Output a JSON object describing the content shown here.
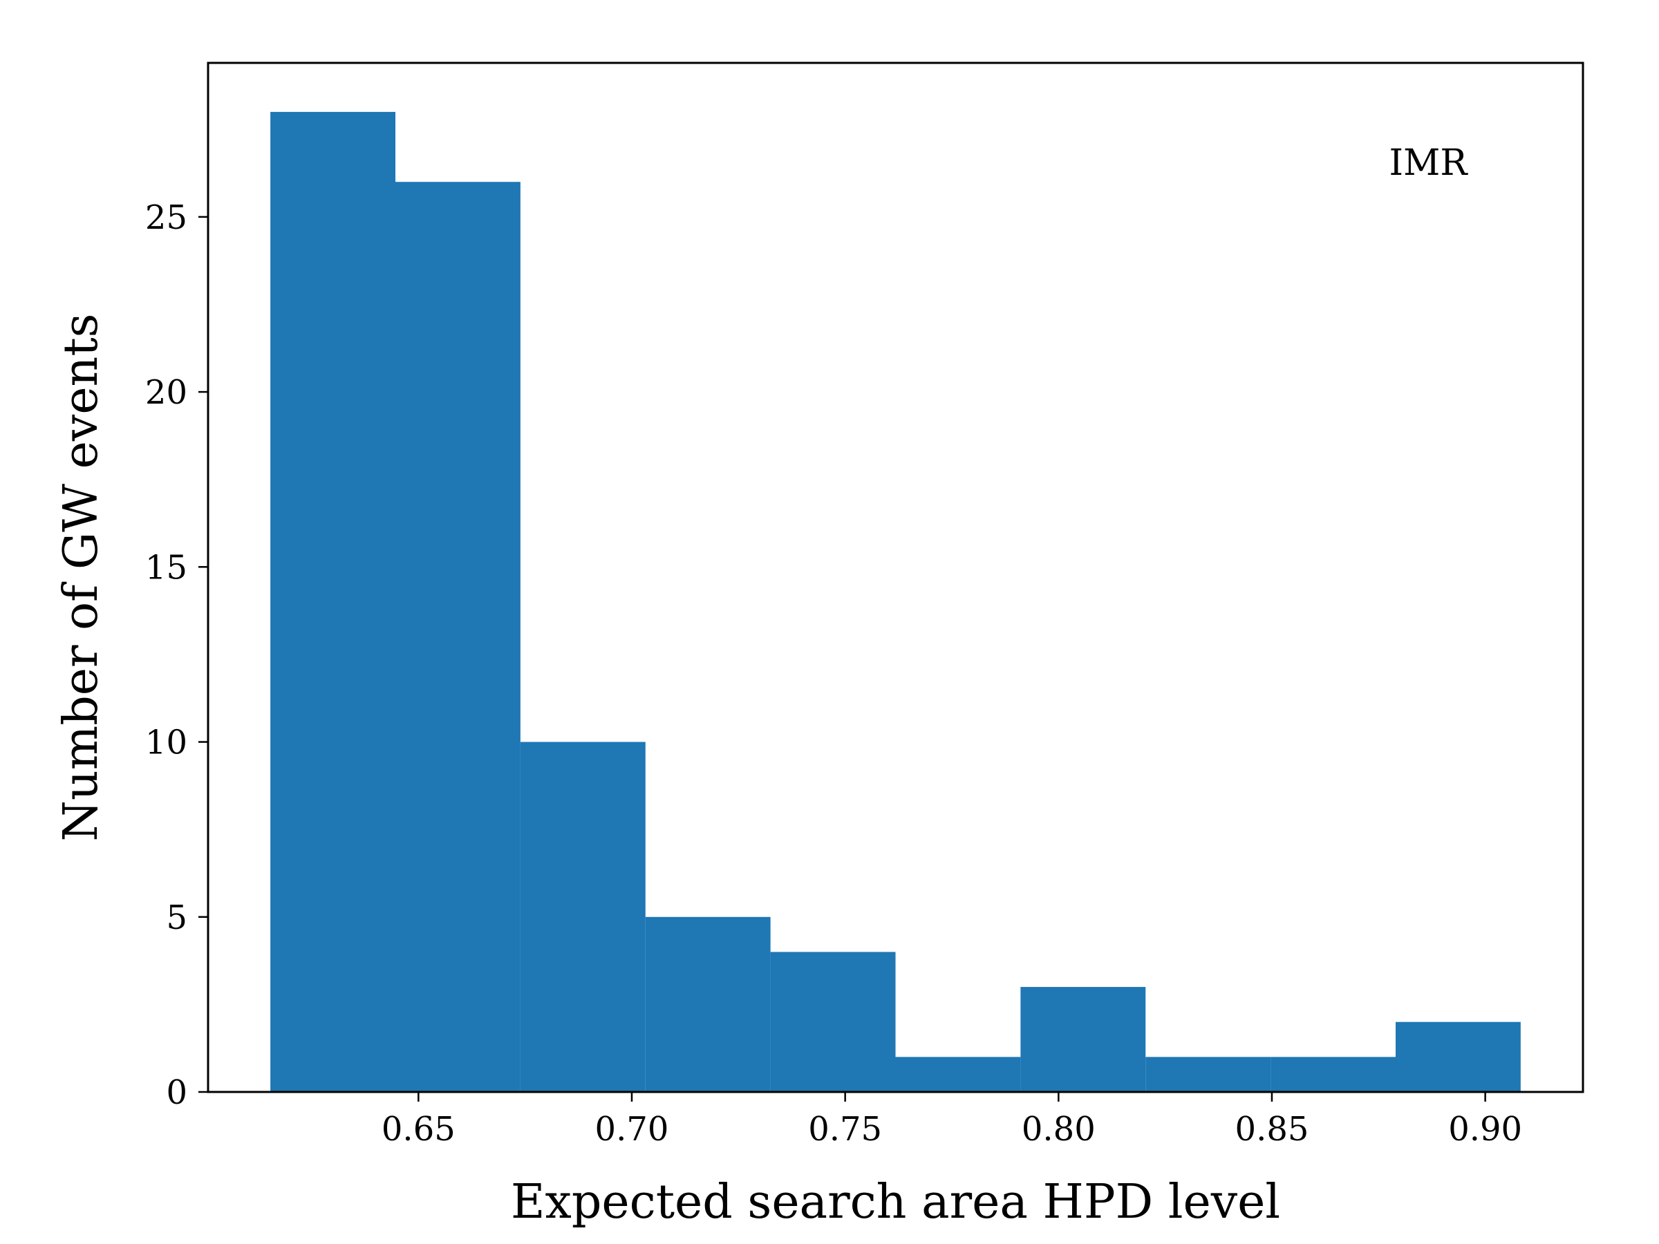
{
  "chart_data": {
    "type": "bar",
    "bin_edges": [
      0.6153,
      0.6446,
      0.6739,
      0.7032,
      0.7325,
      0.7618,
      0.7911,
      0.8204,
      0.8497,
      0.879,
      0.9083
    ],
    "values": [
      28,
      26,
      10,
      5,
      4,
      1,
      3,
      1,
      1,
      2
    ],
    "xlabel": "Expected search area HPD level",
    "ylabel": "Number of GW events",
    "annotation": "IMR",
    "xlim": [
      0.6007,
      0.9229
    ],
    "ylim": [
      0,
      29.4
    ],
    "xticks": [
      0.65,
      0.7,
      0.75,
      0.8,
      0.85,
      0.9
    ],
    "xtick_labels": [
      "0.65",
      "0.70",
      "0.75",
      "0.80",
      "0.85",
      "0.90"
    ],
    "yticks": [
      0,
      5,
      10,
      15,
      20,
      25
    ],
    "ytick_labels": [
      "0",
      "5",
      "10",
      "15",
      "20",
      "25"
    ],
    "bar_color": "#1f77b4",
    "grid": false,
    "legend": "none"
  }
}
